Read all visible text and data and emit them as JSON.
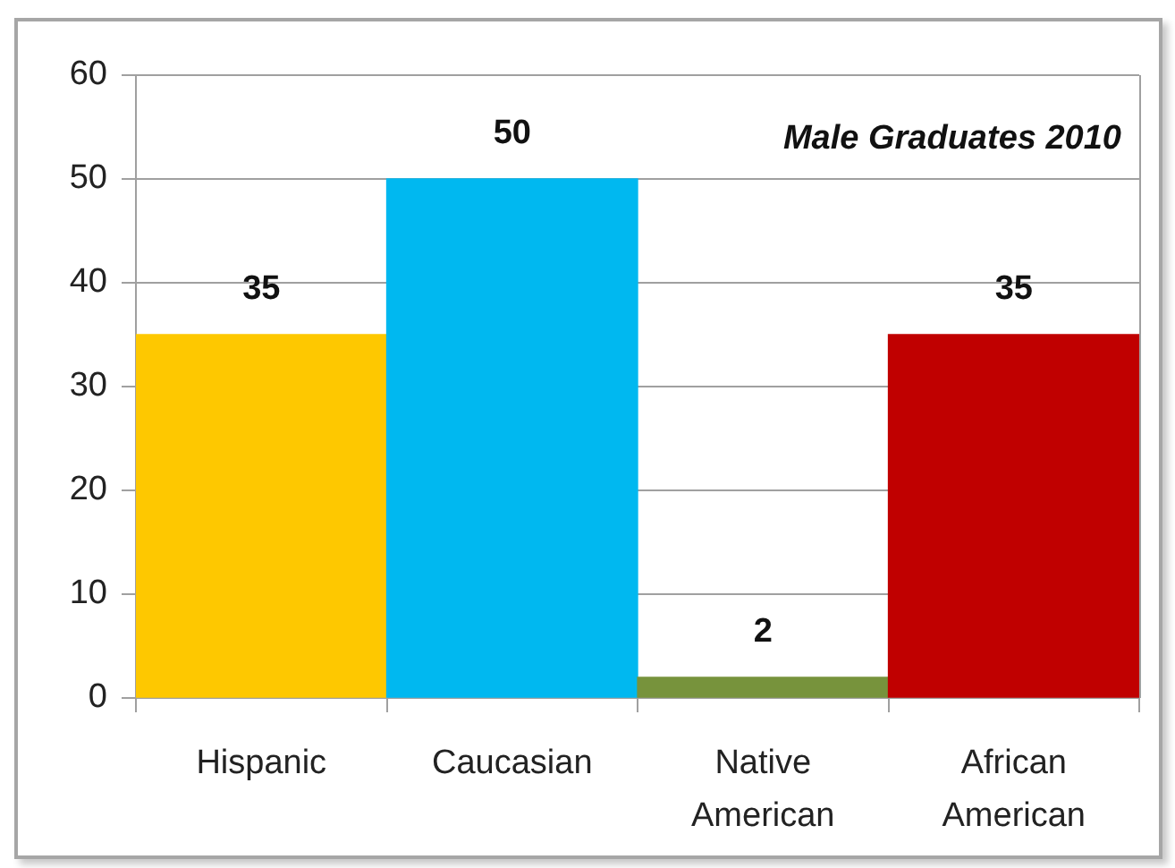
{
  "chart_data": {
    "type": "bar",
    "title": "Male Graduates 2010",
    "categories": [
      "Hispanic",
      "Caucasian",
      "Native American",
      "African American"
    ],
    "values": [
      35,
      50,
      2,
      35
    ],
    "colors": [
      "#fec800",
      "#00b8f0",
      "#77933c",
      "#c00000"
    ],
    "ylim": [
      0,
      60
    ],
    "yticks": [
      0,
      10,
      20,
      30,
      40,
      50,
      60
    ],
    "grid": "y",
    "data_labels": true
  }
}
